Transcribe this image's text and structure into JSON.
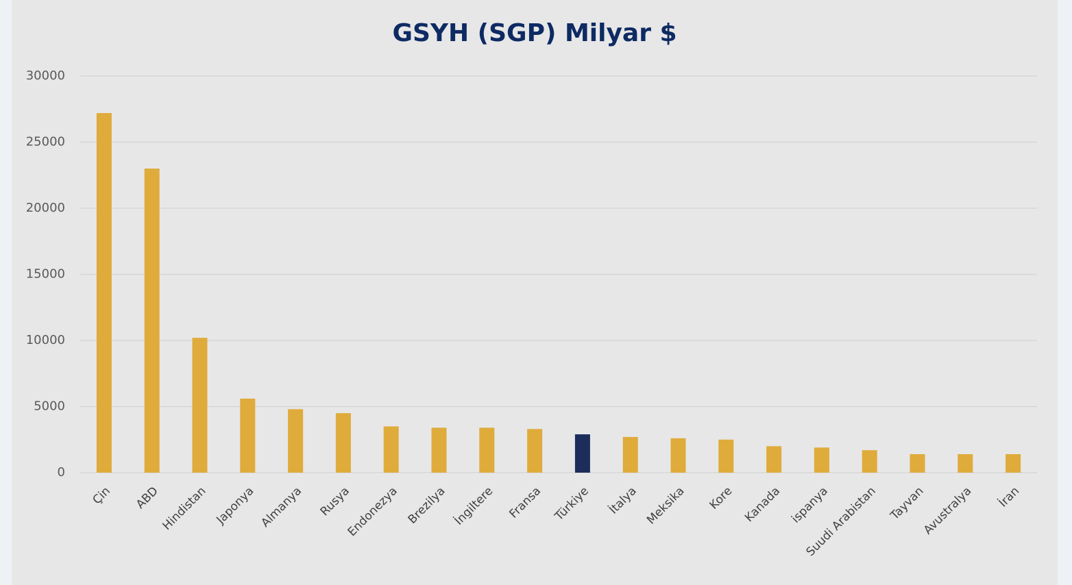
{
  "chart_data": {
    "type": "bar",
    "title": "GSYH (SGP) Milyar $",
    "categories": [
      "Çin",
      "ABD",
      "Hindistan",
      "Japonya",
      "Almanya",
      "Rusya",
      "Endonezya",
      "Brezilya",
      "İngiltere",
      "Fransa",
      "Türkiye",
      "İtalya",
      "Meksika",
      "Kore",
      "Kanada",
      "ispanya",
      "Suudi Arabistan",
      "Tayvan",
      "Avustralya",
      "İran"
    ],
    "values": [
      27200,
      23000,
      10200,
      5600,
      4800,
      4500,
      3500,
      3400,
      3400,
      3300,
      2900,
      2700,
      2600,
      2500,
      2000,
      1900,
      1700,
      1400,
      1400,
      1400
    ],
    "colors": [
      "#dfab3b",
      "#dfab3b",
      "#dfab3b",
      "#dfab3b",
      "#dfab3b",
      "#dfab3b",
      "#dfab3b",
      "#dfab3b",
      "#dfab3b",
      "#dfab3b",
      "#1c2d5c",
      "#dfab3b",
      "#dfab3b",
      "#dfab3b",
      "#dfab3b",
      "#dfab3b",
      "#dfab3b",
      "#dfab3b",
      "#dfab3b",
      "#dfab3b"
    ],
    "ylim": [
      0,
      30000
    ],
    "yticks": [
      0,
      5000,
      10000,
      15000,
      20000,
      25000,
      30000
    ],
    "grid": true
  }
}
